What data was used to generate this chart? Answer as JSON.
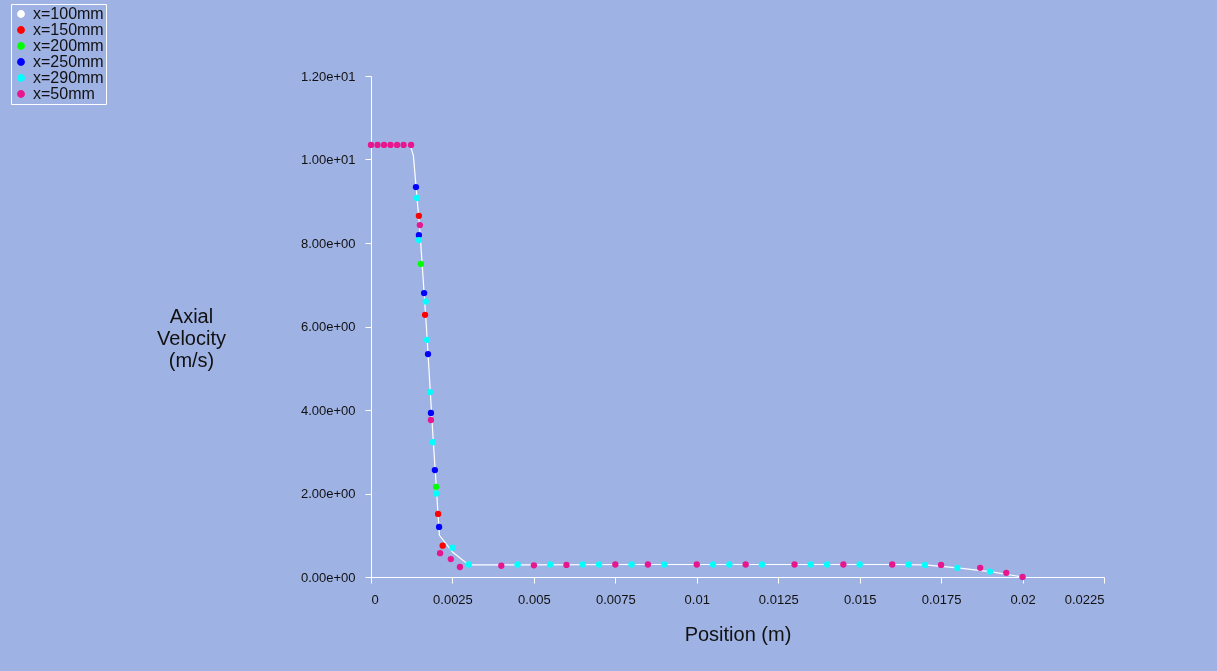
{
  "chart_data": {
    "type": "scatter",
    "xlabel": "Position (m)",
    "ylabel": "Axial Velocity (m/s)",
    "xlim": [
      0,
      0.0225
    ],
    "xticks": [
      0,
      0.0025,
      0.005,
      0.0075,
      0.01,
      0.0125,
      0.015,
      0.0175,
      0.02,
      0.0225
    ],
    "ylim": [
      0,
      12
    ],
    "yticks": [
      {
        "value": 0,
        "label": "0.00e+00"
      },
      {
        "value": 2,
        "label": "2.00e+00"
      },
      {
        "value": 4,
        "label": "4.00e+00"
      },
      {
        "value": 6,
        "label": "6.00e+00"
      },
      {
        "value": 8,
        "label": "8.00e+00"
      },
      {
        "value": 10,
        "label": "1.00e+01"
      },
      {
        "value": 12,
        "label": "1.20e+01"
      }
    ],
    "grid": false,
    "legend": "top left",
    "marker": "circle",
    "series": [
      {
        "name": "x=100mm",
        "type": "line",
        "marker": "none",
        "color": "#ffffff",
        "x": [
          0.0012,
          0.0013,
          0.0015,
          0.0017,
          0.0019,
          0.0021,
          0.0025,
          0.003,
          0.005,
          0.008,
          0.01,
          0.012,
          0.014,
          0.016,
          0.017,
          0.018,
          0.019,
          0.02
        ],
        "values": [
          10.35,
          10.1,
          8.3,
          6.0,
          3.4,
          1.0,
          0.6,
          0.29,
          0.29,
          0.3,
          0.3,
          0.3,
          0.3,
          0.3,
          0.29,
          0.22,
          0.13,
          0.0
        ]
      },
      {
        "name": "x=150mm",
        "color": "#ff0000",
        "x": [
          0.00147,
          0.00166,
          0.00206,
          0.0022
        ],
        "values": [
          8.65,
          6.28,
          1.51,
          0.75
        ]
      },
      {
        "name": "x=200mm",
        "color": "#00ff00",
        "x": [
          0.00153,
          0.002
        ],
        "values": [
          7.5,
          2.16
        ]
      },
      {
        "name": "x=250mm",
        "color": "#0000ff",
        "x": [
          0.00138,
          0.00147,
          0.00163,
          0.00175,
          0.00184,
          0.00196,
          0.00209
        ],
        "values": [
          9.34,
          8.19,
          6.8,
          5.34,
          3.93,
          2.56,
          1.2
        ]
      },
      {
        "name": "x=290mm",
        "color": "#00ffff",
        "x": [
          0.00141,
          0.00147,
          0.00168,
          0.00172,
          0.00181,
          0.0019,
          0.002,
          0.0025,
          0.003,
          0.0045,
          0.0055,
          0.0065,
          0.007,
          0.008,
          0.009,
          0.0105,
          0.011,
          0.012,
          0.0135,
          0.014,
          0.015,
          0.0165,
          0.017,
          0.018,
          0.019,
          0.02
        ],
        "values": [
          9.08,
          8.07,
          6.6,
          5.68,
          4.43,
          3.23,
          2.0,
          0.7,
          0.3,
          0.3,
          0.3,
          0.3,
          0.3,
          0.3,
          0.3,
          0.3,
          0.3,
          0.3,
          0.3,
          0.3,
          0.3,
          0.3,
          0.29,
          0.22,
          0.13,
          0.0
        ]
      },
      {
        "name": "x=50mm",
        "color": "#e8168e",
        "x": [
          0,
          0.0002,
          0.0004,
          0.0006,
          0.0008,
          0.001,
          0.00123,
          0.0015,
          0.00184,
          0.00212,
          0.00245,
          0.00273,
          0.004,
          0.005,
          0.006,
          0.0075,
          0.0085,
          0.01,
          0.0115,
          0.013,
          0.0145,
          0.016,
          0.0175,
          0.0187,
          0.0195,
          0.02
        ],
        "values": [
          10.35,
          10.35,
          10.35,
          10.35,
          10.35,
          10.35,
          10.35,
          8.43,
          3.76,
          0.57,
          0.43,
          0.24,
          0.27,
          0.28,
          0.29,
          0.3,
          0.3,
          0.3,
          0.3,
          0.3,
          0.3,
          0.3,
          0.29,
          0.22,
          0.1,
          0.0
        ]
      }
    ]
  }
}
